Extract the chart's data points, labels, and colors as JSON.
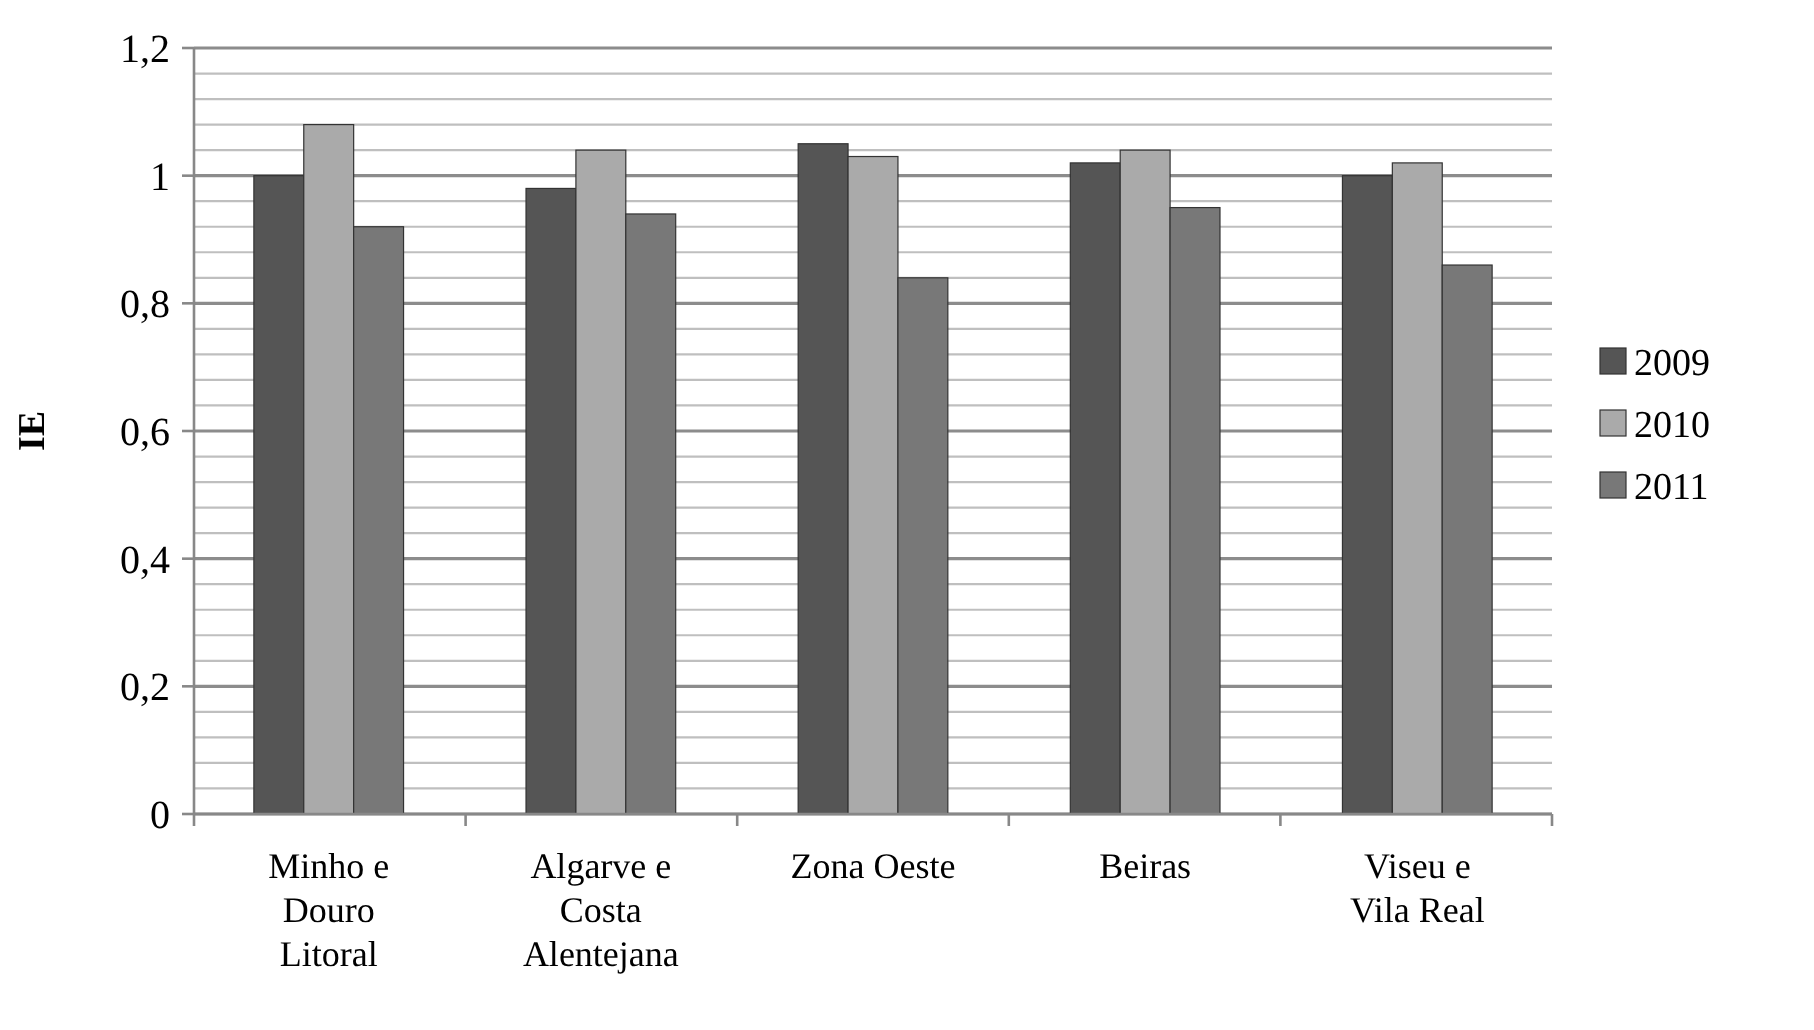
{
  "chart_data": {
    "type": "bar",
    "ylabel": "IE",
    "categories": [
      "Minho e Douro Litoral",
      "Algarve e Costa Alentejana",
      "Zona Oeste",
      "Beiras",
      "Viseu e Vila Real"
    ],
    "series": [
      {
        "name": "2009",
        "color": "#555555",
        "values": [
          1.0,
          0.98,
          1.05,
          1.02,
          1.0
        ]
      },
      {
        "name": "2010",
        "color": "#aaaaaa",
        "values": [
          1.08,
          1.04,
          1.03,
          1.04,
          1.02
        ]
      },
      {
        "name": "2011",
        "color": "#787878",
        "values": [
          0.92,
          0.94,
          0.84,
          0.95,
          0.86
        ]
      }
    ],
    "ylim": [
      0,
      1.2
    ],
    "yticks": [
      {
        "value": 0,
        "label": "0"
      },
      {
        "value": 0.04,
        "label": null
      },
      {
        "value": 0.08,
        "label": null
      },
      {
        "value": 0.12,
        "label": null
      },
      {
        "value": 0.16,
        "label": null
      },
      {
        "value": 0.2,
        "label": "0,2"
      },
      {
        "value": 0.24,
        "label": null
      },
      {
        "value": 0.28,
        "label": null
      },
      {
        "value": 0.32,
        "label": null
      },
      {
        "value": 0.36,
        "label": null
      },
      {
        "value": 0.4,
        "label": "0,4"
      },
      {
        "value": 0.44,
        "label": null
      },
      {
        "value": 0.48,
        "label": null
      },
      {
        "value": 0.52,
        "label": null
      },
      {
        "value": 0.56,
        "label": null
      },
      {
        "value": 0.6,
        "label": "0,6"
      },
      {
        "value": 0.64,
        "label": null
      },
      {
        "value": 0.68,
        "label": null
      },
      {
        "value": 0.72,
        "label": null
      },
      {
        "value": 0.76,
        "label": null
      },
      {
        "value": 0.8,
        "label": "0,8"
      },
      {
        "value": 0.84,
        "label": null
      },
      {
        "value": 0.88,
        "label": null
      },
      {
        "value": 0.92,
        "label": null
      },
      {
        "value": 0.96,
        "label": null
      },
      {
        "value": 1,
        "label": "1"
      },
      {
        "value": 1.04,
        "label": null
      },
      {
        "value": 1.08,
        "label": null
      },
      {
        "value": 1.12,
        "label": null
      },
      {
        "value": 1.16,
        "label": null
      },
      {
        "value": 1.2,
        "label": "1,2"
      }
    ],
    "grid": "y",
    "legend": "right"
  }
}
